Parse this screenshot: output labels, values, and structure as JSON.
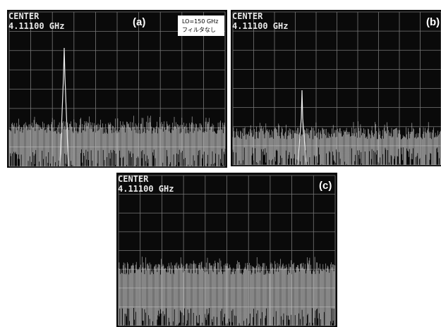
{
  "panels": [
    {
      "label": "(a)",
      "center_label": "CENTER",
      "center_freq": "4.11100 GHz",
      "note": [
        "LO=150 GHz",
        "フィルタなし"
      ]
    },
    {
      "label": "(b)",
      "center_label": "CENTER",
      "center_freq": "4.11100 GHz"
    },
    {
      "label": "(c)",
      "center_label": "CENTER",
      "center_freq": "4.11100 GHz"
    }
  ]
}
